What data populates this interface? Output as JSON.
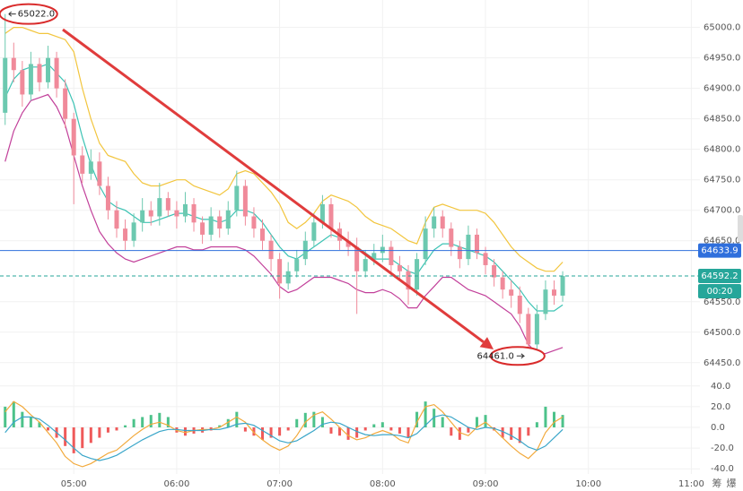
{
  "chart_data": {
    "type": "candlestick",
    "x": [
      "04:20",
      "04:25",
      "04:30",
      "04:35",
      "04:40",
      "04:45",
      "04:50",
      "04:55",
      "05:00",
      "05:05",
      "05:10",
      "05:15",
      "05:20",
      "05:25",
      "05:30",
      "05:35",
      "05:40",
      "05:45",
      "05:50",
      "05:55",
      "06:00",
      "06:05",
      "06:10",
      "06:15",
      "06:20",
      "06:25",
      "06:30",
      "06:35",
      "06:40",
      "06:45",
      "06:50",
      "06:55",
      "07:00",
      "07:05",
      "07:10",
      "07:15",
      "07:20",
      "07:25",
      "07:30",
      "07:35",
      "07:40",
      "07:45",
      "07:50",
      "07:55",
      "08:00",
      "08:05",
      "08:10",
      "08:15",
      "08:20",
      "08:25",
      "08:30",
      "08:35",
      "08:40",
      "08:45",
      "08:50",
      "08:55",
      "09:00",
      "09:05",
      "09:10",
      "09:15",
      "09:20",
      "09:25",
      "09:30",
      "09:35",
      "09:40",
      "09:45"
    ],
    "open": [
      64860,
      64950,
      64930,
      64890,
      64940,
      64910,
      64950,
      64900,
      64850,
      64790,
      64760,
      64780,
      64740,
      64700,
      64670,
      64650,
      64680,
      64700,
      64690,
      64720,
      64700,
      64690,
      64710,
      64680,
      64660,
      64690,
      64670,
      64700,
      64740,
      64690,
      64670,
      64650,
      64620,
      64580,
      64600,
      64620,
      64650,
      64680,
      64710,
      64670,
      64650,
      64640,
      64600,
      64620,
      64630,
      64640,
      64610,
      64600,
      64570,
      64620,
      64670,
      64690,
      64670,
      64640,
      64620,
      64660,
      64630,
      64610,
      64590,
      64570,
      64560,
      64530,
      64480,
      64530,
      64570,
      64560
    ],
    "high": [
      65022,
      64975,
      64945,
      64960,
      64950,
      64970,
      64960,
      64915,
      64860,
      64805,
      64800,
      64795,
      64755,
      64715,
      64685,
      64695,
      64720,
      64715,
      64745,
      64730,
      64715,
      64730,
      64720,
      64690,
      64705,
      64700,
      64715,
      64765,
      64750,
      64705,
      64685,
      64660,
      64630,
      64615,
      64635,
      64665,
      64695,
      64725,
      64720,
      64680,
      64665,
      64655,
      64635,
      64645,
      64660,
      64650,
      64625,
      64610,
      64630,
      64690,
      64705,
      64700,
      64680,
      64650,
      64675,
      64670,
      64640,
      64620,
      64600,
      64585,
      64575,
      64540,
      64545,
      64585,
      64585,
      64600
    ],
    "low": [
      64840,
      64910,
      64870,
      64880,
      64895,
      64900,
      64885,
      64835,
      64710,
      64745,
      64750,
      64725,
      64685,
      64655,
      64635,
      64640,
      64665,
      64675,
      64675,
      64690,
      64670,
      64680,
      64665,
      64645,
      64650,
      64655,
      64660,
      64690,
      64675,
      64655,
      64635,
      64600,
      64555,
      64570,
      64590,
      64610,
      64640,
      64670,
      64655,
      64635,
      64625,
      64530,
      64590,
      64610,
      64615,
      64595,
      64585,
      64545,
      64560,
      64610,
      64655,
      64655,
      64625,
      64605,
      64610,
      64620,
      64595,
      64575,
      64555,
      64540,
      64515,
      64461,
      64470,
      64520,
      64545,
      64550
    ],
    "close": [
      64950,
      64930,
      64890,
      64940,
      64910,
      64950,
      64900,
      64850,
      64790,
      64760,
      64780,
      64740,
      64700,
      64670,
      64650,
      64680,
      64700,
      64690,
      64720,
      64700,
      64690,
      64710,
      64680,
      64660,
      64690,
      64670,
      64700,
      64740,
      64690,
      64670,
      64650,
      64620,
      64580,
      64600,
      64620,
      64650,
      64680,
      64710,
      64670,
      64650,
      64640,
      64600,
      64620,
      64630,
      64640,
      64610,
      64600,
      64570,
      64620,
      64670,
      64690,
      64670,
      64640,
      64620,
      64660,
      64630,
      64610,
      64590,
      64570,
      64560,
      64530,
      64480,
      64530,
      64570,
      64560,
      64592.2
    ],
    "up_color": "#6cc9b0",
    "down_color": "#f08a9a",
    "bands": [
      {
        "color": "#f2c53d",
        "values": [
          64990,
          65000,
          65000,
          64995,
          64990,
          64990,
          64985,
          64980,
          64960,
          64900,
          64850,
          64810,
          64790,
          64785,
          64780,
          64760,
          64745,
          64740,
          64740,
          64745,
          64750,
          64750,
          64740,
          64735,
          64730,
          64725,
          64735,
          64760,
          64765,
          64760,
          64745,
          64730,
          64710,
          64680,
          64670,
          64680,
          64695,
          64715,
          64725,
          64720,
          64715,
          64705,
          64690,
          64680,
          64675,
          64670,
          64660,
          64650,
          64645,
          64680,
          64705,
          64710,
          64705,
          64700,
          64700,
          64700,
          64695,
          64680,
          64660,
          64640,
          64625,
          64615,
          64605,
          64600,
          64600,
          64615
        ]
      },
      {
        "color": "#3cc3b4",
        "values": [
          64885,
          64915,
          64930,
          64935,
          64935,
          64940,
          64925,
          64910,
          64875,
          64820,
          64775,
          64740,
          64715,
          64705,
          64700,
          64690,
          64680,
          64680,
          64685,
          64690,
          64695,
          64695,
          64690,
          64685,
          64685,
          64680,
          64685,
          64700,
          64700,
          64695,
          64680,
          64660,
          64640,
          64625,
          64620,
          64630,
          64640,
          64650,
          64660,
          64655,
          64650,
          64640,
          64630,
          64620,
          64620,
          64620,
          64610,
          64600,
          64595,
          64615,
          64635,
          64645,
          64645,
          64640,
          64635,
          64630,
          64625,
          64615,
          64600,
          64585,
          64570,
          64550,
          64535,
          64535,
          64535,
          64545
        ]
      },
      {
        "color": "#c2409a",
        "values": [
          64780,
          64830,
          64860,
          64880,
          64885,
          64890,
          64870,
          64840,
          64790,
          64740,
          64700,
          64665,
          64645,
          64630,
          64620,
          64615,
          64620,
          64625,
          64630,
          64635,
          64640,
          64640,
          64635,
          64635,
          64640,
          64640,
          64640,
          64640,
          64635,
          64625,
          64610,
          64595,
          64575,
          64565,
          64570,
          64580,
          64590,
          64590,
          64590,
          64585,
          64580,
          64570,
          64565,
          64565,
          64570,
          64565,
          64555,
          64540,
          64540,
          64560,
          64575,
          64590,
          64590,
          64580,
          64570,
          64565,
          64560,
          64550,
          64540,
          64530,
          64510,
          64480,
          64465,
          64465,
          64470,
          64475
        ]
      }
    ],
    "xlim": [
      "04:17",
      "11:05"
    ],
    "xticks": [
      "05:00",
      "06:00",
      "07:00",
      "08:00",
      "09:00",
      "10:00",
      "11:00"
    ],
    "ylim": [
      64435,
      65045
    ],
    "yticks": [
      {
        "value": 65000,
        "label": "65000.0"
      },
      {
        "value": 64950,
        "label": "64950.0"
      },
      {
        "value": 64900,
        "label": "64900.0"
      },
      {
        "value": 64850,
        "label": "64850.0"
      },
      {
        "value": 64800,
        "label": "64800.0"
      },
      {
        "value": 64750,
        "label": "64750.0"
      },
      {
        "value": 64700,
        "label": "64700.0"
      },
      {
        "value": 64650,
        "label": "64650.0"
      },
      {
        "value": 64550,
        "label": "64550.0"
      },
      {
        "value": 64500,
        "label": "64500.0"
      },
      {
        "value": 64450,
        "label": "64450.0"
      }
    ],
    "grid": true,
    "max_label": "65022.0",
    "min_label": "64461.0",
    "price_lines": [
      {
        "value": 64633.9,
        "color": "#2f6fdc",
        "style": "solid"
      },
      {
        "value": 64592.2,
        "color": "#26a69a",
        "style": "dashed",
        "countdown": "00:20"
      }
    ],
    "indicator": {
      "ylim": [
        -45,
        45
      ],
      "yticks": [
        {
          "value": 40,
          "label": "40.0"
        },
        {
          "value": 20,
          "label": "20.0"
        },
        {
          "value": 0,
          "label": "0.0"
        },
        {
          "value": -20,
          "label": "-20.0"
        },
        {
          "value": -40,
          "label": "-40.0"
        }
      ],
      "pos_color": "#4cc28a",
      "neg_color": "#ef5a5a",
      "histogram": [
        20,
        25,
        15,
        10,
        5,
        -3,
        -10,
        -18,
        -25,
        -20,
        -15,
        -10,
        -5,
        -3,
        2,
        8,
        10,
        12,
        14,
        10,
        -5,
        -8,
        -6,
        -5,
        -3,
        2,
        8,
        15,
        -4,
        -8,
        -12,
        -10,
        -8,
        -3,
        8,
        14,
        15,
        10,
        -6,
        -8,
        -12,
        -10,
        -3,
        3,
        5,
        -3,
        -6,
        -10,
        15,
        25,
        18,
        10,
        -8,
        -12,
        -5,
        10,
        12,
        -3,
        -10,
        -12,
        -15,
        -8,
        5,
        20,
        15,
        12
      ],
      "lines": [
        {
          "color": "#f2a93b",
          "values": [
            15,
            25,
            20,
            12,
            5,
            -5,
            -15,
            -28,
            -35,
            -38,
            -35,
            -30,
            -25,
            -22,
            -15,
            -8,
            -2,
            3,
            5,
            2,
            -3,
            -5,
            -3,
            -2,
            -2,
            0,
            5,
            10,
            5,
            -5,
            -12,
            -18,
            -22,
            -18,
            -8,
            5,
            12,
            15,
            8,
            0,
            -8,
            -12,
            -10,
            -6,
            -3,
            -6,
            -12,
            -15,
            5,
            20,
            22,
            15,
            5,
            -5,
            -8,
            0,
            5,
            -2,
            -10,
            -18,
            -25,
            -30,
            -22,
            -5,
            5,
            10
          ]
        },
        {
          "color": "#3aa6c9",
          "values": [
            -5,
            5,
            10,
            10,
            8,
            2,
            -5,
            -12,
            -20,
            -27,
            -30,
            -32,
            -30,
            -27,
            -22,
            -17,
            -12,
            -8,
            -4,
            -2,
            -2,
            -3,
            -3,
            -3,
            -2,
            -2,
            0,
            3,
            4,
            2,
            -3,
            -8,
            -13,
            -15,
            -13,
            -8,
            -3,
            3,
            5,
            4,
            0,
            -4,
            -7,
            -8,
            -7,
            -7,
            -8,
            -10,
            -6,
            2,
            10,
            12,
            10,
            5,
            0,
            -2,
            0,
            -1,
            -4,
            -8,
            -13,
            -19,
            -22,
            -18,
            -10,
            -2
          ]
        }
      ]
    },
    "toolbar": [
      "筹",
      "爆"
    ]
  }
}
